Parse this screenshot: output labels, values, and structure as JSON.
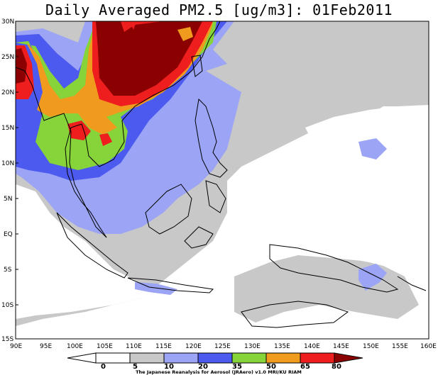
{
  "title": "Daily Averaged PM2.5 [ug/m3]: 01Feb2011",
  "map": {
    "lat_labels": [
      "30N",
      "25N",
      "20N",
      "15N",
      "10N",
      "5N",
      "EQ",
      "5S",
      "10S",
      "15S"
    ],
    "lon_labels": [
      "90E",
      "95E",
      "100E",
      "105E",
      "110E",
      "115E",
      "120E",
      "125E",
      "130E",
      "135E",
      "140E",
      "145E",
      "150E",
      "155E",
      "160E"
    ],
    "extent": {
      "lon_min": 90,
      "lon_max": 160,
      "lat_min": -15,
      "lat_max": 30
    }
  },
  "colorbar": {
    "levels": [
      "0",
      "5",
      "10",
      "20",
      "35",
      "50",
      "65",
      "80"
    ],
    "colors": [
      "#ffffff",
      "#c8c8c8",
      "#9ba4f5",
      "#4d5af0",
      "#86d43a",
      "#f09a1e",
      "#ee1e1e",
      "#8b0000"
    ]
  },
  "credit": "The Japanese Reanalysis for Aerosol (JRAero) v1.0 MRI/KU RIAM"
}
